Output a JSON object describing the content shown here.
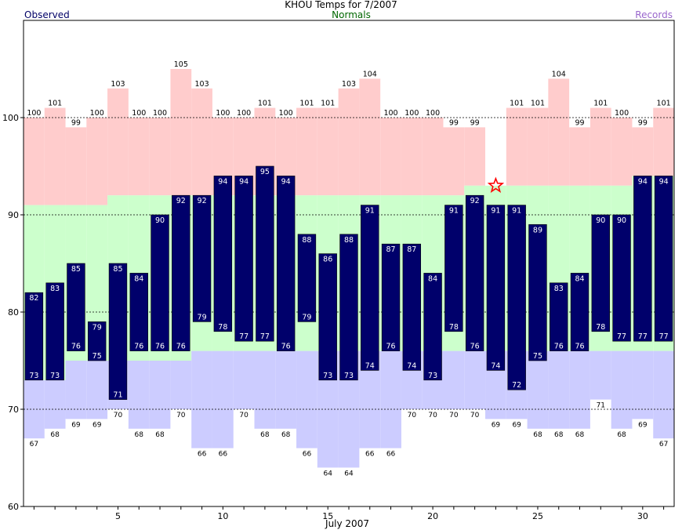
{
  "chart_data": {
    "type": "bar",
    "title": "KHOU Temps for 7/2007",
    "xlabel": "July 2007",
    "ylim": [
      60,
      110
    ],
    "yticks": [
      60,
      70,
      80,
      90,
      100
    ],
    "xticks": [
      5,
      10,
      15,
      20,
      25,
      30
    ],
    "days": [
      1,
      2,
      3,
      4,
      5,
      6,
      7,
      8,
      9,
      10,
      11,
      12,
      13,
      14,
      15,
      16,
      17,
      18,
      19,
      20,
      21,
      22,
      23,
      24,
      25,
      26,
      27,
      28,
      29,
      30,
      31
    ],
    "legend": {
      "observed": "Observed",
      "normals": "Normals",
      "records": "Records"
    },
    "colors": {
      "observed": "#00006b",
      "normals": "#ccffcc",
      "record_high": "#ffcccc",
      "record_low": "#ccccff",
      "observed_label": "#000066",
      "normals_label": "#006600",
      "records_label": "#9966cc",
      "star": "#ff0000"
    },
    "series": [
      {
        "name": "Observed high",
        "values": [
          82,
          83,
          85,
          79,
          85,
          84,
          90,
          92,
          92,
          94,
          94,
          95,
          94,
          88,
          86,
          88,
          91,
          87,
          87,
          84,
          91,
          92,
          91,
          91,
          89,
          83,
          84,
          90,
          90,
          94,
          94
        ]
      },
      {
        "name": "Observed low",
        "values": [
          73,
          73,
          76,
          75,
          71,
          76,
          76,
          76,
          79,
          78,
          77,
          77,
          76,
          79,
          73,
          73,
          74,
          76,
          74,
          73,
          78,
          76,
          74,
          72,
          75,
          76,
          76,
          78,
          77,
          77,
          77
        ]
      },
      {
        "name": "Record high",
        "values": [
          100,
          101,
          99,
          100,
          103,
          100,
          100,
          105,
          103,
          100,
          100,
          101,
          100,
          101,
          101,
          103,
          104,
          100,
          100,
          100,
          99,
          99,
          null,
          101,
          101,
          104,
          99,
          101,
          100,
          99,
          101
        ]
      },
      {
        "name": "Record low",
        "values": [
          67,
          68,
          69,
          69,
          70,
          68,
          68,
          70,
          66,
          66,
          70,
          68,
          68,
          66,
          64,
          64,
          66,
          66,
          70,
          70,
          70,
          70,
          69,
          69,
          68,
          68,
          68,
          71,
          68,
          69,
          67
        ]
      },
      {
        "name": "Normal high",
        "values": [
          91,
          91,
          91,
          91,
          92,
          92,
          92,
          92,
          92,
          92,
          92,
          92,
          92,
          92,
          92,
          92,
          92,
          92,
          92,
          92,
          92,
          93,
          93,
          93,
          93,
          93,
          93,
          93,
          93,
          94,
          94
        ]
      },
      {
        "name": "Normal low",
        "values": [
          73,
          73,
          75,
          75,
          75,
          75,
          75,
          75,
          76,
          76,
          76,
          76,
          76,
          76,
          76,
          76,
          76,
          76,
          76,
          76,
          76,
          76,
          76,
          76,
          76,
          76,
          76,
          76,
          76,
          76,
          76
        ]
      }
    ],
    "record_set_day": 23,
    "record_set_value": 93,
    "grid": "dashed at 70, 80, 90, 100"
  }
}
